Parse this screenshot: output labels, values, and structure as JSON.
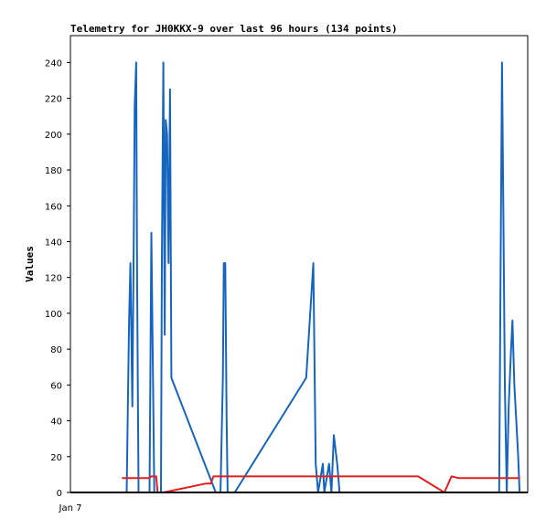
{
  "chart_data": {
    "type": "line",
    "title": "Telemetry for JH0KKX-9 over last 96 hours (134 points)",
    "xlabel": "",
    "ylabel": "Values",
    "x_tick_labels": [
      "Jan 7"
    ],
    "x_unit": "hours",
    "xlim": [
      0,
      96
    ],
    "ylim": [
      0,
      255
    ],
    "y_ticks": [
      0,
      20,
      40,
      60,
      80,
      100,
      120,
      140,
      160,
      180,
      200,
      220,
      240
    ],
    "grid": false,
    "legend": "none",
    "series": [
      {
        "color": "#1565c0",
        "points": [
          [
            10.8,
            0
          ],
          [
            11.8,
            0
          ],
          [
            12.3,
            95
          ],
          [
            12.6,
            128
          ],
          [
            13.0,
            48
          ],
          [
            13.3,
            145
          ],
          [
            13.5,
            216
          ],
          [
            13.8,
            240
          ],
          [
            14.0,
            120
          ],
          [
            14.3,
            0
          ],
          [
            15.0,
            0
          ],
          [
            16.6,
            0
          ],
          [
            17.0,
            145
          ],
          [
            17.3,
            72
          ],
          [
            17.6,
            0
          ],
          [
            18.0,
            0
          ],
          [
            19.0,
            0
          ],
          [
            19.2,
            130
          ],
          [
            19.5,
            240
          ],
          [
            19.8,
            88
          ],
          [
            20.0,
            208
          ],
          [
            20.3,
            200
          ],
          [
            20.6,
            128
          ],
          [
            20.9,
            225
          ],
          [
            21.2,
            64
          ],
          [
            30.5,
            0
          ],
          [
            31.5,
            0
          ],
          [
            32.0,
            64
          ],
          [
            32.2,
            128
          ],
          [
            32.5,
            128
          ],
          [
            32.8,
            40
          ],
          [
            33.0,
            0
          ],
          [
            34.5,
            0
          ],
          [
            49.5,
            64
          ],
          [
            51.0,
            128
          ],
          [
            51.5,
            16
          ],
          [
            52.0,
            0
          ],
          [
            53.0,
            16
          ],
          [
            53.3,
            0
          ],
          [
            54.3,
            16
          ],
          [
            54.8,
            0
          ],
          [
            55.3,
            32
          ],
          [
            56.0,
            16
          ],
          [
            56.5,
            0
          ],
          [
            57.5,
            0
          ],
          [
            90.0,
            0
          ],
          [
            90.3,
            120
          ],
          [
            90.6,
            240
          ],
          [
            90.9,
            155
          ],
          [
            91.2,
            60
          ],
          [
            91.6,
            0
          ],
          [
            92.0,
            48
          ],
          [
            92.5,
            80
          ],
          [
            92.8,
            96
          ],
          [
            93.2,
            60
          ],
          [
            94.0,
            20
          ],
          [
            94.3,
            0
          ]
        ]
      },
      {
        "color": "#e02020",
        "points": [
          [
            10.8,
            8
          ],
          [
            16.5,
            8
          ],
          [
            17.0,
            9
          ],
          [
            18.0,
            9
          ],
          [
            18.3,
            0
          ],
          [
            19.5,
            0
          ],
          [
            28.5,
            5
          ],
          [
            29.5,
            5
          ],
          [
            30.0,
            9
          ],
          [
            73.0,
            9
          ],
          [
            78.5,
            0
          ],
          [
            80.0,
            9
          ],
          [
            81.5,
            8
          ],
          [
            94.4,
            8
          ]
        ]
      }
    ]
  }
}
